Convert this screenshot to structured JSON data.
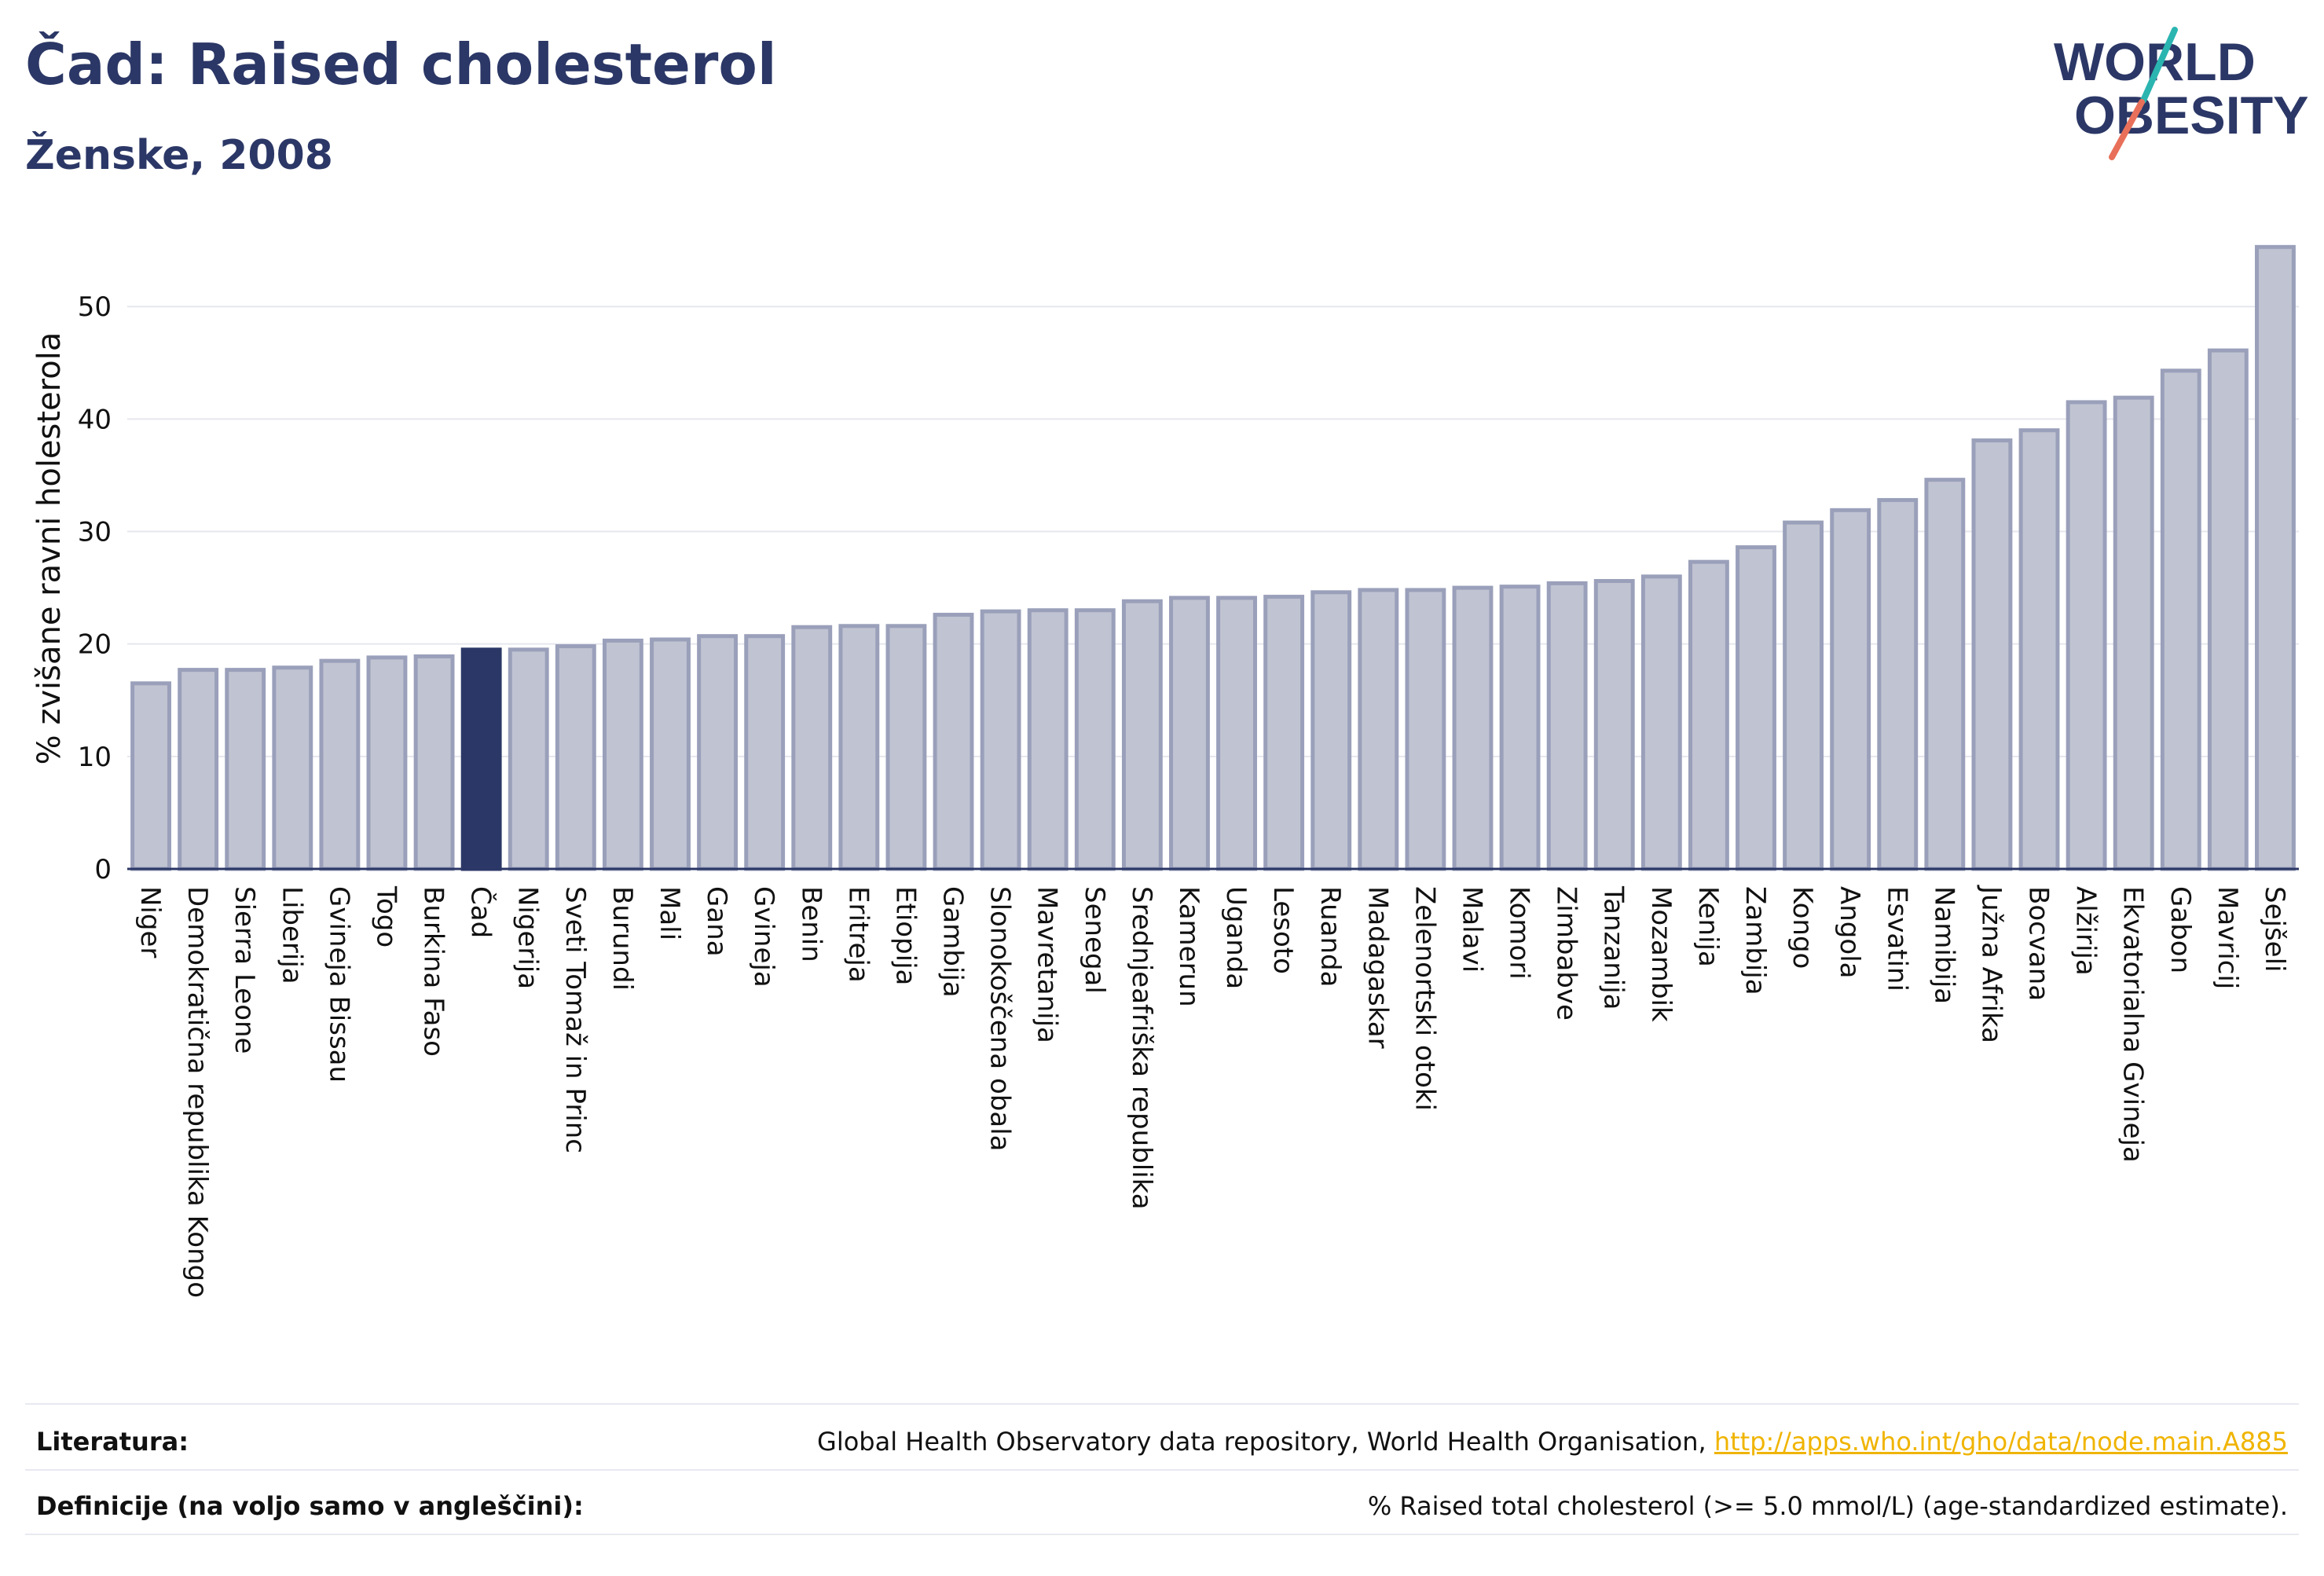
{
  "header": {
    "title": "Čad: Raised cholesterol",
    "subtitle": "Ženske, 2008"
  },
  "logo": {
    "line1": "WORLD",
    "line2": "OBESITY"
  },
  "chart_data": {
    "type": "bar",
    "ylabel": "% zvišane ravni holesterola",
    "ylim": [
      0,
      57
    ],
    "yticks": [
      0,
      10,
      20,
      30,
      40,
      50
    ],
    "grid": true,
    "highlight": "Čad",
    "colors": {
      "bar": "#c0c3d1",
      "bar_edge": "#9aa0ba",
      "highlight": "#2b3766"
    },
    "categories": [
      "Niger",
      "Demokratična republika Kongo",
      "Sierra Leone",
      "Liberija",
      "Gvineja Bissau",
      "Togo",
      "Burkina Faso",
      "Čad",
      "Nigerija",
      "Sveti Tomaž in Princ",
      "Burundi",
      "Mali",
      "Gana",
      "Gvineja",
      "Benin",
      "Eritreja",
      "Etiopija",
      "Gambija",
      "Slonokoščena obala",
      "Mavretanija",
      "Senegal",
      "Srednjeafriška republika",
      "Kamerun",
      "Uganda",
      "Lesoto",
      "Ruanda",
      "Madagaskar",
      "Zelenortski otoki",
      "Malavi",
      "Komori",
      "Zimbabve",
      "Tanzanija",
      "Mozambik",
      "Kenija",
      "Zambija",
      "Kongo",
      "Angola",
      "Esvatini",
      "Namibija",
      "Južna Afrika",
      "Bocvana",
      "Alžirija",
      "Ekvatorialna Gvineja",
      "Gabon",
      "Mavricij",
      "Sejšeli"
    ],
    "values": [
      16.5,
      17.7,
      17.7,
      17.9,
      18.5,
      18.8,
      18.9,
      19.5,
      19.5,
      19.8,
      20.3,
      20.4,
      20.7,
      20.7,
      21.5,
      21.6,
      21.6,
      22.6,
      22.9,
      23.0,
      23.0,
      23.8,
      24.1,
      24.1,
      24.2,
      24.6,
      24.8,
      24.8,
      25.0,
      25.1,
      25.4,
      25.6,
      26.0,
      27.3,
      28.6,
      30.8,
      31.9,
      32.8,
      34.6,
      38.1,
      39.0,
      41.5,
      41.9,
      44.3,
      46.1,
      55.3
    ]
  },
  "footer": {
    "references_label": "Literatura:",
    "references_text": "Global Health Observatory data repository, World Health Organisation, ",
    "references_link": "http://apps.who.int/gho/data/node.main.A885",
    "definitions_label": "Definicije (na voljo samo v angleščini):",
    "definitions_text": "% Raised total cholesterol (>= 5.0 mmol/L) (age-standardized estimate)."
  }
}
